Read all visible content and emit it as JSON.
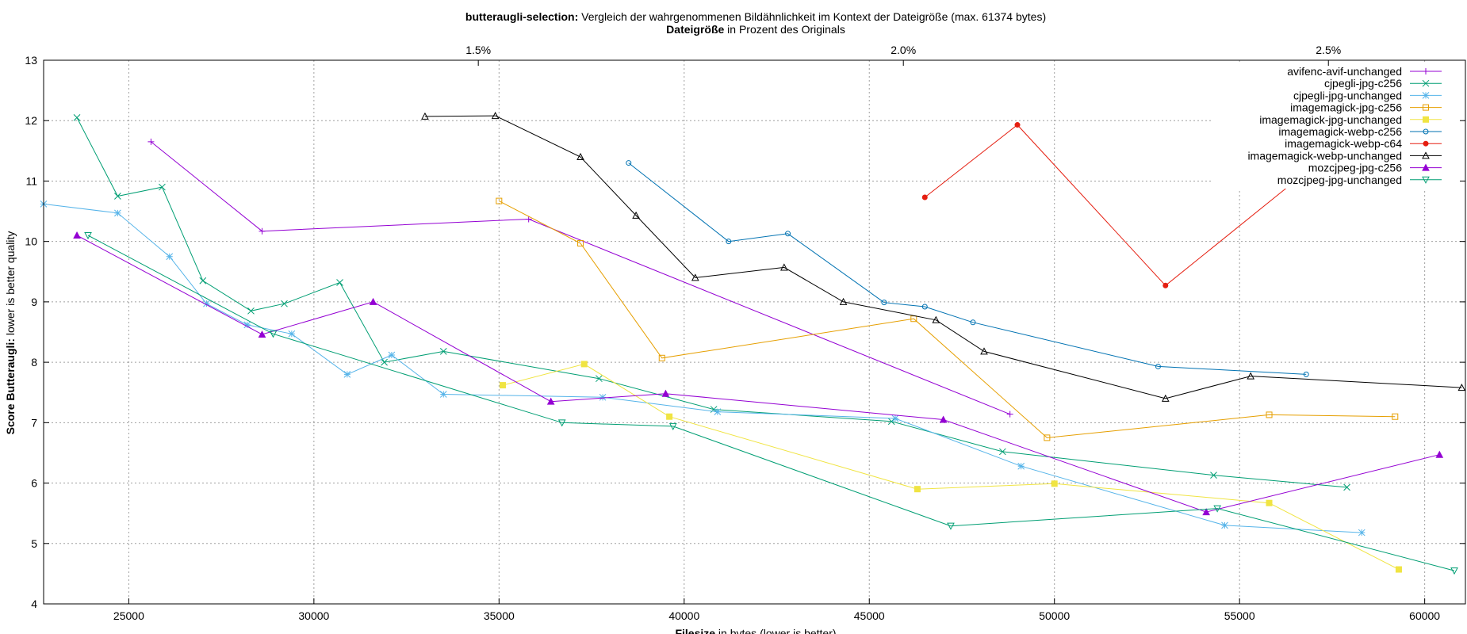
{
  "chart_data": {
    "type": "line",
    "title": {
      "bold": "butteraugli-selection:",
      "rest": " Vergleich der wahrgenommenen Bildähnlichkeit im Kontext der Dateigröße (max. 61374 bytes)"
    },
    "x2label": {
      "bold": "Dateigröße",
      "rest": " in Prozent des Originals"
    },
    "xlabel": {
      "bold": "Filesize",
      "rest": " in bytes (lower is better)"
    },
    "ylabel": {
      "bold": "Score Butteraugli:",
      "rest": " lower is better quality"
    },
    "xlim": [
      22700,
      61100
    ],
    "ylim": [
      4,
      13
    ],
    "xticks": [
      25000,
      30000,
      35000,
      40000,
      45000,
      50000,
      55000,
      60000
    ],
    "yticks": [
      4,
      5,
      6,
      7,
      8,
      9,
      10,
      11,
      12,
      13
    ],
    "x2ticks": [
      {
        "value": 0.015,
        "label": "1.5%"
      },
      {
        "value": 0.02,
        "label": "2.0%"
      },
      {
        "value": 0.025,
        "label": "2.5%"
      }
    ],
    "x2_scale_bytes_per_fraction": 2296000,
    "grid": true,
    "legend_position": "top-right",
    "series": [
      {
        "name": "avifenc-avif-unchanged",
        "color": "#9400d3",
        "marker": "plus",
        "points": [
          [
            25600,
            11.65
          ],
          [
            28600,
            10.17
          ],
          [
            35800,
            10.37
          ],
          [
            48800,
            7.14
          ]
        ]
      },
      {
        "name": "cjpegli-jpg-c256",
        "color": "#009e73",
        "marker": "x",
        "points": [
          [
            23600,
            12.05
          ],
          [
            24700,
            10.75
          ],
          [
            25900,
            10.9
          ],
          [
            27000,
            9.35
          ],
          [
            28300,
            8.85
          ],
          [
            29200,
            8.97
          ],
          [
            30700,
            9.32
          ],
          [
            31900,
            8.0
          ],
          [
            33500,
            8.18
          ],
          [
            37700,
            7.73
          ],
          [
            40800,
            7.22
          ],
          [
            45600,
            7.02
          ],
          [
            48600,
            6.52
          ],
          [
            54300,
            6.13
          ],
          [
            57900,
            5.93
          ]
        ]
      },
      {
        "name": "cjpegli-jpg-unchanged",
        "color": "#56b4e9",
        "marker": "star",
        "points": [
          [
            22700,
            10.62
          ],
          [
            24700,
            10.47
          ],
          [
            26100,
            9.75
          ],
          [
            27100,
            8.97
          ],
          [
            28200,
            8.62
          ],
          [
            29400,
            8.47
          ],
          [
            30900,
            7.8
          ],
          [
            32100,
            8.12
          ],
          [
            33500,
            7.47
          ],
          [
            37800,
            7.42
          ],
          [
            40900,
            7.18
          ],
          [
            45700,
            7.07
          ],
          [
            49100,
            6.28
          ],
          [
            54600,
            5.3
          ],
          [
            58300,
            5.18
          ]
        ]
      },
      {
        "name": "imagemagick-jpg-c256",
        "color": "#e69f00",
        "marker": "square",
        "points": [
          [
            35000,
            10.67
          ],
          [
            37200,
            9.97
          ],
          [
            39400,
            8.07
          ],
          [
            46200,
            8.72
          ],
          [
            49800,
            6.75
          ],
          [
            55800,
            7.13
          ],
          [
            59200,
            7.1
          ]
        ]
      },
      {
        "name": "imagemagick-jpg-unchanged",
        "color": "#f0e442",
        "marker": "filled-square",
        "points": [
          [
            35100,
            7.62
          ],
          [
            37300,
            7.97
          ],
          [
            39600,
            7.1
          ],
          [
            46300,
            5.9
          ],
          [
            50000,
            5.99
          ],
          [
            55800,
            5.67
          ],
          [
            59300,
            4.57
          ]
        ]
      },
      {
        "name": "imagemagick-webp-c256",
        "color": "#0072b2",
        "marker": "circle",
        "points": [
          [
            38500,
            11.3
          ],
          [
            41200,
            10.0
          ],
          [
            42800,
            10.13
          ],
          [
            45400,
            8.99
          ],
          [
            46500,
            8.92
          ],
          [
            47800,
            8.66
          ],
          [
            52800,
            7.93
          ],
          [
            56800,
            7.8
          ]
        ]
      },
      {
        "name": "imagemagick-webp-c64",
        "color": "#e51e10",
        "marker": "filled-circle",
        "points": [
          [
            46500,
            10.73
          ],
          [
            49000,
            11.93
          ],
          [
            53000,
            9.27
          ],
          [
            56600,
            11.05
          ]
        ]
      },
      {
        "name": "imagemagick-webp-unchanged",
        "color": "#000000",
        "marker": "triangle",
        "points": [
          [
            33000,
            12.07
          ],
          [
            34900,
            12.08
          ],
          [
            37200,
            11.4
          ],
          [
            38700,
            10.43
          ],
          [
            40300,
            9.4
          ],
          [
            42700,
            9.57
          ],
          [
            44300,
            9.0
          ],
          [
            46800,
            8.7
          ],
          [
            48100,
            8.18
          ],
          [
            53000,
            7.4
          ],
          [
            55300,
            7.77
          ],
          [
            61000,
            7.58
          ]
        ]
      },
      {
        "name": "mozcjpeg-jpg-c256",
        "color": "#9400d3",
        "marker": "filled-triangle",
        "points": [
          [
            23600,
            10.1
          ],
          [
            28600,
            8.46
          ],
          [
            31600,
            9.0
          ],
          [
            36400,
            7.35
          ],
          [
            39500,
            7.48
          ],
          [
            47000,
            7.05
          ],
          [
            54100,
            5.52
          ],
          [
            60400,
            6.47
          ]
        ]
      },
      {
        "name": "mozcjpeg-jpg-unchanged",
        "color": "#009e73",
        "marker": "inverted-triangle",
        "points": [
          [
            23900,
            10.1
          ],
          [
            28900,
            8.47
          ],
          [
            36700,
            7.0
          ],
          [
            39700,
            6.94
          ],
          [
            47200,
            5.29
          ],
          [
            54400,
            5.58
          ],
          [
            60800,
            4.55
          ]
        ]
      }
    ]
  }
}
